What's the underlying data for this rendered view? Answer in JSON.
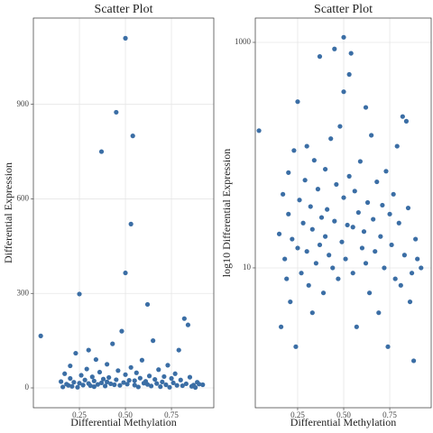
{
  "chart_data": [
    {
      "type": "scatter",
      "title": "Scatter Plot",
      "x_label": "Differential Methylation",
      "y_label": "Differential Expression",
      "color": "#3b6ea5",
      "grid": true,
      "log_y": false,
      "xlim": [
        0.0,
        0.98
      ],
      "ylim": [
        -63,
        1174
      ],
      "xticks": [
        0.25,
        {
          "value": 0.5,
          "label": "0.50"
        },
        0.75
      ],
      "yticks": [
        0,
        300,
        600,
        900
      ],
      "x": [
        0.04,
        0.15,
        0.16,
        0.17,
        0.18,
        0.19,
        0.2,
        0.2,
        0.21,
        0.22,
        0.23,
        0.24,
        0.25,
        0.25,
        0.26,
        0.27,
        0.28,
        0.29,
        0.3,
        0.3,
        0.31,
        0.32,
        0.33,
        0.33,
        0.34,
        0.35,
        0.36,
        0.37,
        0.37,
        0.38,
        0.39,
        0.4,
        0.4,
        0.41,
        0.42,
        0.43,
        0.44,
        0.45,
        0.45,
        0.46,
        0.47,
        0.48,
        0.49,
        0.5,
        0.5,
        0.5,
        0.51,
        0.52,
        0.53,
        0.53,
        0.54,
        0.55,
        0.55,
        0.56,
        0.57,
        0.58,
        0.59,
        0.6,
        0.61,
        0.62,
        0.62,
        0.63,
        0.64,
        0.65,
        0.66,
        0.67,
        0.68,
        0.69,
        0.7,
        0.71,
        0.72,
        0.73,
        0.74,
        0.75,
        0.76,
        0.77,
        0.78,
        0.79,
        0.8,
        0.81,
        0.82,
        0.83,
        0.84,
        0.85,
        0.86,
        0.87,
        0.88,
        0.89,
        0.9,
        0.92
      ],
      "y": [
        165,
        20,
        3,
        45,
        12,
        8,
        70,
        30,
        5,
        18,
        110,
        2,
        298,
        15,
        40,
        9,
        25,
        60,
        14,
        120,
        7,
        35,
        22,
        4,
        90,
        11,
        50,
        750,
        16,
        28,
        6,
        75,
        19,
        33,
        13,
        140,
        10,
        875,
        26,
        55,
        8,
        180,
        17,
        1110,
        365,
        42,
        12,
        24,
        520,
        65,
        800,
        23,
        9,
        48,
        3,
        31,
        88,
        15,
        21,
        265,
        11,
        38,
        6,
        150,
        27,
        14,
        58,
        4,
        19,
        36,
        10,
        72,
        2,
        30,
        16,
        45,
        8,
        120,
        25,
        7,
        220,
        13,
        200,
        34,
        5,
        9,
        1.5,
        18,
        12,
        10
      ]
    },
    {
      "type": "scatter",
      "title": "Scatter Plot",
      "x_label": "Differential Methylation",
      "y_label": "log10 Differential Expression",
      "color": "#3b6ea5",
      "grid": true,
      "log_y": true,
      "xlim": [
        0.02,
        0.975
      ],
      "ylim": [
        0.575,
        1644
      ],
      "xticks": [
        0.25,
        {
          "value": 0.5,
          "label": "0.50"
        },
        0.75
      ],
      "yticks": [
        10,
        1000
      ],
      "x": [
        0.04,
        0.15,
        0.16,
        0.17,
        0.18,
        0.19,
        0.2,
        0.2,
        0.21,
        0.22,
        0.23,
        0.24,
        0.25,
        0.25,
        0.26,
        0.27,
        0.28,
        0.29,
        0.3,
        0.3,
        0.31,
        0.32,
        0.33,
        0.33,
        0.34,
        0.35,
        0.36,
        0.37,
        0.37,
        0.38,
        0.39,
        0.4,
        0.4,
        0.41,
        0.42,
        0.43,
        0.44,
        0.45,
        0.45,
        0.46,
        0.47,
        0.48,
        0.49,
        0.5,
        0.5,
        0.5,
        0.51,
        0.52,
        0.53,
        0.53,
        0.54,
        0.55,
        0.55,
        0.56,
        0.57,
        0.58,
        0.59,
        0.6,
        0.61,
        0.62,
        0.62,
        0.63,
        0.64,
        0.65,
        0.66,
        0.67,
        0.68,
        0.69,
        0.7,
        0.71,
        0.72,
        0.73,
        0.74,
        0.75,
        0.76,
        0.77,
        0.78,
        0.79,
        0.8,
        0.81,
        0.82,
        0.83,
        0.84,
        0.85,
        0.86,
        0.87,
        0.88,
        0.89,
        0.9,
        0.92
      ],
      "y": [
        165,
        20,
        3,
        45,
        12,
        8,
        70,
        30,
        5,
        18,
        110,
        2,
        298,
        15,
        40,
        9,
        25,
        60,
        14,
        120,
        7,
        35,
        22,
        4,
        90,
        11,
        50,
        750,
        16,
        28,
        6,
        75,
        19,
        33,
        13,
        140,
        10,
        875,
        26,
        55,
        8,
        180,
        17,
        1110,
        365,
        42,
        12,
        24,
        520,
        65,
        800,
        23,
        9,
        48,
        3,
        31,
        88,
        15,
        21,
        265,
        11,
        38,
        6,
        150,
        27,
        14,
        58,
        4,
        19,
        36,
        10,
        72,
        2,
        30,
        16,
        45,
        8,
        120,
        25,
        7,
        220,
        13,
        200,
        34,
        5,
        9,
        1.5,
        18,
        12,
        10
      ]
    }
  ]
}
